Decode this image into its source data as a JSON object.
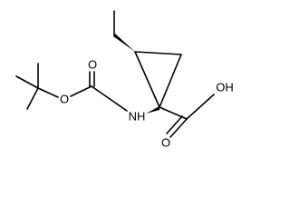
{
  "atoms": [
    "O",
    "O",
    "NH",
    "OH",
    "O"
  ]
}
